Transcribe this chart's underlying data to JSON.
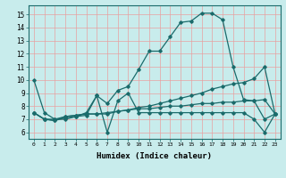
{
  "xlabel": "Humidex (Indice chaleur)",
  "bg_color": "#c8ecec",
  "line_color": "#1a6b6b",
  "grid_color": "#e8a0a0",
  "xlim": [
    -0.5,
    23.5
  ],
  "ylim": [
    5.5,
    15.7
  ],
  "xticks": [
    0,
    1,
    2,
    3,
    4,
    5,
    6,
    7,
    8,
    9,
    10,
    11,
    12,
    13,
    14,
    15,
    16,
    17,
    18,
    19,
    20,
    21,
    22,
    23
  ],
  "yticks": [
    6,
    7,
    8,
    9,
    10,
    11,
    12,
    13,
    14,
    15
  ],
  "lines": [
    {
      "x": [
        0,
        1,
        2,
        3,
        4,
        5,
        6,
        7,
        8,
        9,
        10,
        11,
        12,
        13,
        14,
        15,
        16,
        17,
        18,
        19,
        20,
        21,
        22,
        23
      ],
      "y": [
        10,
        7.5,
        7.0,
        7.0,
        7.2,
        7.5,
        8.8,
        8.2,
        9.2,
        9.5,
        10.8,
        12.2,
        12.2,
        13.3,
        14.4,
        14.5,
        15.1,
        15.1,
        14.6,
        11.0,
        8.5,
        8.4,
        7.0,
        7.4
      ]
    },
    {
      "x": [
        0,
        1,
        2,
        3,
        4,
        5,
        6,
        7,
        8,
        9,
        10,
        11,
        12,
        13,
        14,
        15,
        16,
        17,
        18,
        19,
        20,
        21,
        22,
        23
      ],
      "y": [
        7.5,
        7.0,
        7.0,
        7.2,
        7.3,
        7.4,
        7.4,
        7.4,
        7.6,
        7.7,
        7.9,
        8.0,
        8.2,
        8.4,
        8.6,
        8.8,
        9.0,
        9.3,
        9.5,
        9.7,
        9.8,
        10.1,
        11.0,
        7.4
      ]
    },
    {
      "x": [
        0,
        1,
        2,
        3,
        4,
        5,
        6,
        7,
        8,
        9,
        10,
        11,
        12,
        13,
        14,
        15,
        16,
        17,
        18,
        19,
        20,
        21,
        22,
        23
      ],
      "y": [
        7.5,
        7.0,
        6.9,
        7.1,
        7.2,
        7.3,
        8.8,
        6.0,
        8.4,
        9.0,
        7.5,
        7.5,
        7.5,
        7.5,
        7.5,
        7.5,
        7.5,
        7.5,
        7.5,
        7.5,
        7.5,
        7.0,
        6.0,
        7.4
      ]
    },
    {
      "x": [
        0,
        1,
        2,
        3,
        4,
        5,
        6,
        7,
        8,
        9,
        10,
        11,
        12,
        13,
        14,
        15,
        16,
        17,
        18,
        19,
        20,
        21,
        22,
        23
      ],
      "y": [
        7.5,
        7.0,
        6.9,
        7.2,
        7.3,
        7.4,
        7.4,
        7.5,
        7.6,
        7.7,
        7.8,
        7.8,
        7.9,
        8.0,
        8.0,
        8.1,
        8.2,
        8.2,
        8.3,
        8.3,
        8.4,
        8.4,
        8.5,
        7.4
      ]
    }
  ]
}
